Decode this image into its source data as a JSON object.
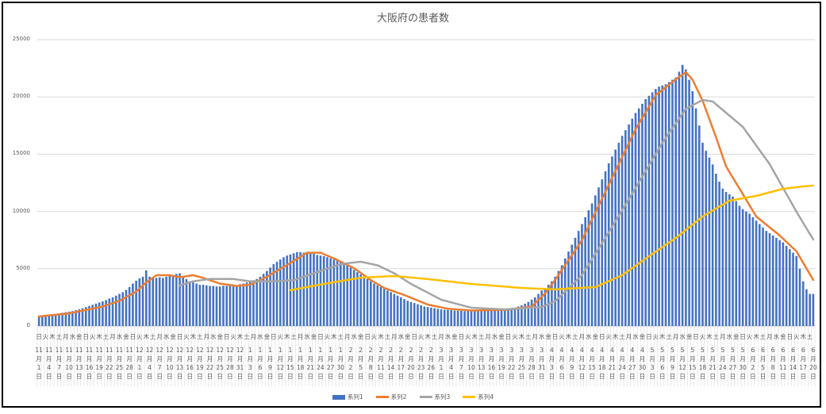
{
  "chart_data": {
    "type": "bar+line",
    "title": "大阪府の患者数",
    "ylim": [
      0,
      25000
    ],
    "yticks": [
      "0",
      "5000",
      "10000",
      "15000",
      "20000",
      "25000"
    ],
    "grid": true,
    "legend_position": "bottom",
    "x_weekday_labels": [
      "日",
      "火",
      "木",
      "土",
      "月",
      "水",
      "金",
      "日",
      "火",
      "木",
      "土",
      "月",
      "水",
      "金",
      "日",
      "火",
      "木",
      "土",
      "月",
      "水",
      "金",
      "日",
      "火",
      "木",
      "土",
      "月",
      "水",
      "金",
      "日",
      "火",
      "木",
      "土",
      "月",
      "水",
      "金",
      "日",
      "火",
      "木",
      "土",
      "月",
      "水",
      "金",
      "日",
      "火",
      "木",
      "土",
      "月",
      "水",
      "金",
      "日",
      "火",
      "木",
      "土",
      "月",
      "水",
      "金",
      "日",
      "火",
      "木",
      "土",
      "月",
      "水",
      "金",
      "日",
      "火",
      "木",
      "土",
      "月",
      "水",
      "金",
      "日",
      "火",
      "木",
      "土",
      "月",
      "水",
      "金",
      "日",
      "火",
      "木",
      "土",
      "月",
      "水",
      "金",
      "日",
      "火",
      "木",
      "土",
      "月",
      "水",
      "金",
      "日",
      "火",
      "木",
      "土",
      "月",
      "水",
      "金",
      "日",
      "火",
      "木",
      "土",
      "月",
      "水",
      "金",
      "日",
      "火",
      "木",
      "土",
      "月",
      "水",
      "金",
      "日",
      "火",
      "木",
      "土"
    ],
    "x_date_labels": [
      "11月1日",
      "11月4日",
      "11月7日",
      "11月10日",
      "11月13日",
      "11月16日",
      "11月19日",
      "11月22日",
      "11月25日",
      "11月28日",
      "12月1日",
      "12月4日",
      "12月7日",
      "12月10日",
      "12月13日",
      "12月16日",
      "12月19日",
      "12月22日",
      "12月25日",
      "12月28日",
      "12月31日",
      "1月3日",
      "1月6日",
      "1月9日",
      "1月12日",
      "1月15日",
      "1月18日",
      "1月21日",
      "1月24日",
      "1月27日",
      "1月30日",
      "2月2日",
      "2月5日",
      "2月8日",
      "2月11日",
      "2月14日",
      "2月17日",
      "2月20日",
      "2月23日",
      "2月26日",
      "3月1日",
      "3月4日",
      "3月7日",
      "3月10日",
      "3月13日",
      "3月16日",
      "3月19日",
      "3月22日",
      "3月25日",
      "3月28日",
      "3月31日",
      "4月3日",
      "4月6日",
      "4月9日",
      "4月12日",
      "4月15日",
      "4月18日",
      "4月21日",
      "4月24日",
      "4月27日",
      "4月30日",
      "5月3日",
      "5月6日",
      "5月9日",
      "5月12日",
      "5月15日",
      "5月18日",
      "5月21日",
      "5月24日",
      "5月27日",
      "5月30日",
      "6月2日",
      "6月5日",
      "6月8日",
      "6月11日",
      "6月14日",
      "6月17日",
      "6月20日"
    ],
    "x_start": "11/1",
    "x_end": "6/20",
    "series": [
      {
        "name": "系列1",
        "kind": "bar",
        "color": "#4472C4",
        "values": [
          830,
          870,
          900,
          940,
          980,
          1050,
          1100,
          1150,
          1200,
          1250,
          1300,
          1380,
          1450,
          1550,
          1650,
          1750,
          1850,
          1950,
          2050,
          2150,
          2250,
          2400,
          2500,
          2650,
          2800,
          2950,
          3150,
          3400,
          3700,
          3950,
          4150,
          4300,
          4850,
          4300,
          4200,
          4200,
          4250,
          4200,
          4300,
          4350,
          4400,
          4550,
          4600,
          4300,
          4100,
          3900,
          3800,
          3700,
          3600,
          3600,
          3550,
          3500,
          3500,
          3450,
          3450,
          3500,
          3500,
          3550,
          3500,
          3550,
          3650,
          3700,
          3800,
          3900,
          4000,
          4100,
          4300,
          4550,
          4800,
          5100,
          5400,
          5600,
          5800,
          6000,
          6150,
          6250,
          6350,
          6440,
          6450,
          6400,
          6450,
          6350,
          6300,
          6200,
          6150,
          6100,
          6000,
          5900,
          5800,
          5700,
          5600,
          5450,
          5300,
          5100,
          4900,
          4700,
          4500,
          4300,
          4100,
          3900,
          3700,
          3550,
          3400,
          3250,
          3100,
          2950,
          2800,
          2650,
          2500,
          2350,
          2200,
          2100,
          2000,
          1900,
          1800,
          1700,
          1650,
          1600,
          1550,
          1500,
          1450,
          1420,
          1400,
          1380,
          1350,
          1330,
          1320,
          1300,
          1300,
          1300,
          1290,
          1300,
          1300,
          1310,
          1320,
          1330,
          1350,
          1380,
          1400,
          1450,
          1500,
          1550,
          1600,
          1700,
          1800,
          1950,
          2100,
          2300,
          2500,
          2800,
          3100,
          3300,
          3600,
          3900,
          4300,
          4800,
          5300,
          5900,
          6500,
          7100,
          7700,
          8300,
          8900,
          9500,
          10100,
          10700,
          11400,
          12100,
          12800,
          13500,
          14200,
          14800,
          15400,
          16000,
          16600,
          17100,
          17600,
          18100,
          18600,
          19000,
          19400,
          19800,
          20100,
          20400,
          20700,
          20900,
          21000,
          21100,
          21300,
          21500,
          21700,
          22200,
          22800,
          22400,
          21500,
          20500,
          19000,
          17500,
          16000,
          15300,
          14700,
          14100,
          13300,
          12600,
          12000,
          11700,
          11500,
          11300,
          10900,
          10500,
          10200,
          10000,
          9800,
          9500,
          9200,
          8900,
          8600,
          8300,
          8100,
          7900,
          7700,
          7500,
          7300,
          7000,
          6700,
          6400,
          6100,
          5000,
          3900,
          3200,
          2800,
          2800
        ]
      },
      {
        "name": "系列2",
        "kind": "line",
        "color": "#ED7D31",
        "points": [
          [
            "11/1",
            830
          ],
          [
            "11/10",
            1100
          ],
          [
            "11/20",
            1700
          ],
          [
            "11/25",
            2200
          ],
          [
            "11/30",
            3000
          ],
          [
            "12/3",
            3800
          ],
          [
            "12/6",
            4430
          ],
          [
            "12/10",
            4430
          ],
          [
            "12/13",
            4250
          ],
          [
            "12/17",
            4430
          ],
          [
            "12/20",
            4200
          ],
          [
            "12/25",
            3700
          ],
          [
            "12/30",
            3500
          ],
          [
            "1/3",
            3600
          ],
          [
            "1/8",
            4300
          ],
          [
            "1/15",
            5500
          ],
          [
            "1/20",
            6400
          ],
          [
            "1/24",
            6400
          ],
          [
            "1/28",
            5900
          ],
          [
            "2/3",
            5050
          ],
          [
            "2/8",
            4000
          ],
          [
            "2/12",
            3320
          ],
          [
            "2/18",
            2700
          ],
          [
            "2/25",
            1870
          ],
          [
            "3/3",
            1500
          ],
          [
            "3/10",
            1350
          ],
          [
            "3/20",
            1400
          ],
          [
            "3/28",
            1700
          ],
          [
            "4/1",
            2840
          ],
          [
            "4/4",
            4020
          ],
          [
            "4/12",
            7480
          ],
          [
            "4/20",
            12330
          ],
          [
            "4/28",
            17170
          ],
          [
            "5/4",
            20150
          ],
          [
            "5/10",
            21540
          ],
          [
            "5/13",
            22160
          ],
          [
            "5/15",
            21500
          ],
          [
            "5/18",
            19670
          ],
          [
            "5/22",
            16480
          ],
          [
            "5/25",
            13920
          ],
          [
            "5/30",
            11500
          ],
          [
            "6/3",
            9560
          ],
          [
            "6/10",
            7900
          ],
          [
            "6/15",
            6510
          ],
          [
            "6/20",
            4020
          ]
        ]
      },
      {
        "name": "系列3",
        "kind": "line",
        "color": "#A5A5A5",
        "points": [
          [
            "12/13",
            3530
          ],
          [
            "12/17",
            3900
          ],
          [
            "12/22",
            4100
          ],
          [
            "12/29",
            4100
          ],
          [
            "1/3",
            3900
          ],
          [
            "1/10",
            3900
          ],
          [
            "1/16",
            4000
          ],
          [
            "1/22",
            4600
          ],
          [
            "1/30",
            5400
          ],
          [
            "2/5",
            5610
          ],
          [
            "2/10",
            5300
          ],
          [
            "2/15",
            4600
          ],
          [
            "2/20",
            3670
          ],
          [
            "3/1",
            2290
          ],
          [
            "3/10",
            1590
          ],
          [
            "3/20",
            1450
          ],
          [
            "3/31",
            1660
          ],
          [
            "4/4",
            2150
          ],
          [
            "4/12",
            4430
          ],
          [
            "4/20",
            8170
          ],
          [
            "4/28",
            12050
          ],
          [
            "5/6",
            16000
          ],
          [
            "5/13",
            18970
          ],
          [
            "5/18",
            19740
          ],
          [
            "5/21",
            19600
          ],
          [
            "5/30",
            17380
          ],
          [
            "6/7",
            14130
          ],
          [
            "6/11",
            12050
          ],
          [
            "6/15",
            9970
          ],
          [
            "6/20",
            7550
          ]
        ]
      },
      {
        "name": "系列4",
        "kind": "line",
        "color": "#FFC000",
        "points": [
          [
            "1/15",
            3120
          ],
          [
            "1/25",
            3670
          ],
          [
            "2/5",
            4220
          ],
          [
            "2/15",
            4360
          ],
          [
            "2/25",
            4090
          ],
          [
            "3/10",
            3670
          ],
          [
            "3/25",
            3320
          ],
          [
            "4/4",
            3190
          ],
          [
            "4/16",
            3390
          ],
          [
            "4/24",
            4430
          ],
          [
            "5/2",
            6090
          ],
          [
            "5/10",
            7690
          ],
          [
            "5/18",
            9560
          ],
          [
            "5/26",
            10940
          ],
          [
            "6/3",
            11360
          ],
          [
            "6/11",
            11980
          ],
          [
            "6/17",
            12190
          ],
          [
            "6/20",
            12260
          ]
        ]
      }
    ]
  }
}
